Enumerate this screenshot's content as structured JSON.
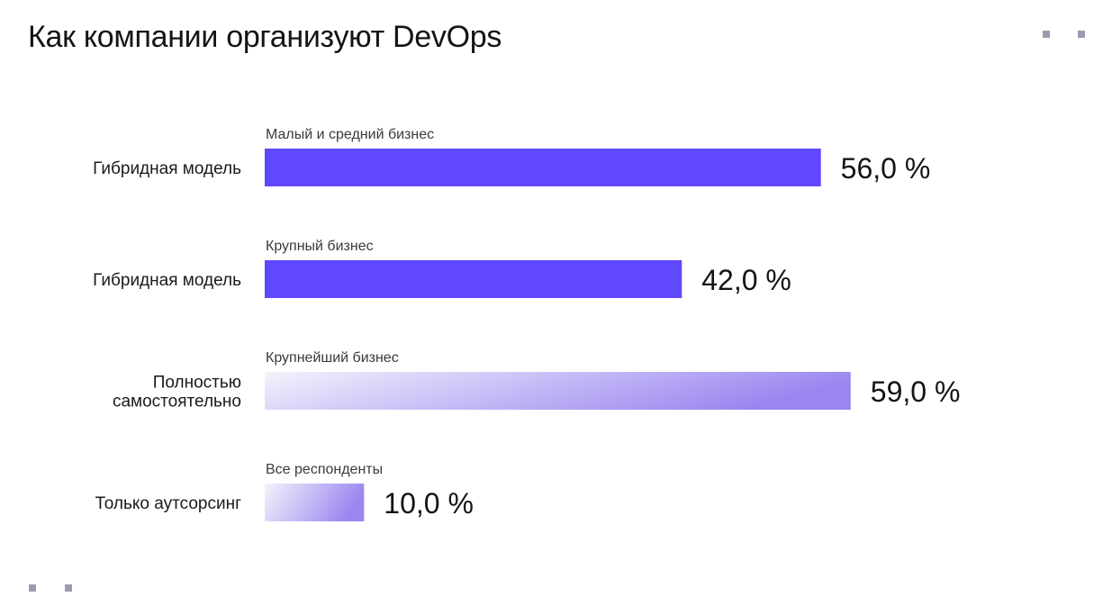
{
  "title": "Как компании организуют DevOps",
  "decorations": {
    "dot_color": "#9b9bb0"
  },
  "colors": {
    "solid_bar": "#6048fe",
    "gradient_start": "#f4f2fc",
    "gradient_end": "#9b86f0"
  },
  "chart_data": {
    "type": "bar",
    "orientation": "horizontal",
    "title": "Как компании организуют DevOps",
    "xlabel": "",
    "ylabel": "",
    "xlim": [
      0,
      70
    ],
    "grid": false,
    "legend": "none",
    "bars": [
      {
        "category": [
          "Гибридная модель"
        ],
        "group": "Малый и средний бизнес",
        "value": 56.0,
        "label": "56,0 %",
        "style": "solid"
      },
      {
        "category": [
          "Гибридная модель"
        ],
        "group": "Крупный бизнес",
        "value": 42.0,
        "label": "42,0 %",
        "style": "solid"
      },
      {
        "category": [
          "Полностью",
          "самостоятельно"
        ],
        "group": "Крупнейший бизнес",
        "value": 59.0,
        "label": "59,0 %",
        "style": "gradient"
      },
      {
        "category": [
          "Только аутсорсинг"
        ],
        "group": "Все респонденты",
        "value": 10.0,
        "label": "10,0 %",
        "style": "gradient"
      }
    ]
  }
}
